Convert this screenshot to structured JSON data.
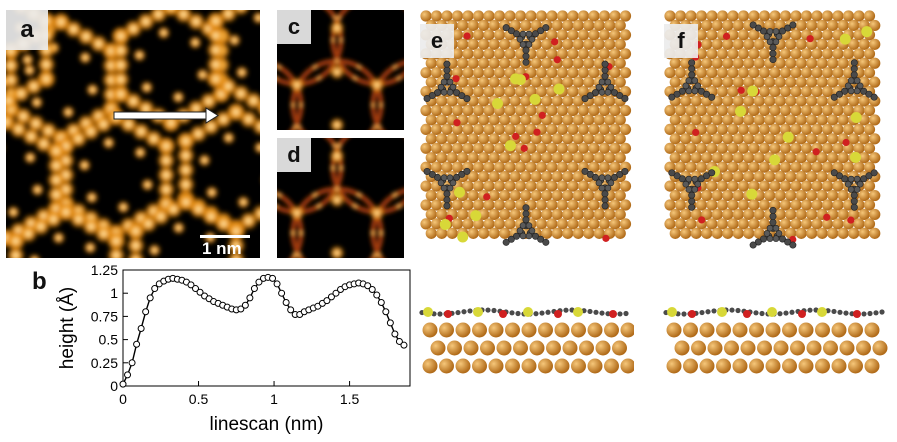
{
  "panels": {
    "a": {
      "label": "a",
      "scalebar": "1 nm"
    },
    "b": {
      "label": "b"
    },
    "c": {
      "label": "c"
    },
    "d": {
      "label": "d"
    },
    "e": {
      "label": "e"
    },
    "f": {
      "label": "f"
    }
  },
  "colors": {
    "stm_dark": "#000000",
    "stm_mid": "#c86a00",
    "stm_bright": "#fff2c8",
    "gold": "#d8922e",
    "carbon": "#4a4a4a",
    "oxygen": "#d02020",
    "sulfur": "#d8d838"
  },
  "chart_data": {
    "type": "line",
    "xlabel": "linescan (nm)",
    "ylabel": "height (Å)",
    "xlim": [
      0,
      1.9
    ],
    "ylim": [
      0,
      1.25
    ],
    "xticks": [
      "0",
      "0.5",
      "1",
      "1.5"
    ],
    "yticks": [
      "0",
      "0.25",
      "0.5",
      "0.75",
      "1",
      "1.25"
    ],
    "grid": false,
    "series": [
      {
        "x": [
          0,
          0.03,
          0.06,
          0.09,
          0.12,
          0.15,
          0.18,
          0.21,
          0.24,
          0.27,
          0.3,
          0.33,
          0.36,
          0.39,
          0.42,
          0.45,
          0.48,
          0.51,
          0.54,
          0.57,
          0.6,
          0.63,
          0.66,
          0.69,
          0.72,
          0.75,
          0.78,
          0.81,
          0.84,
          0.87,
          0.9,
          0.93,
          0.96,
          0.99,
          1.02,
          1.05,
          1.08,
          1.11,
          1.14,
          1.17,
          1.2,
          1.23,
          1.26,
          1.29,
          1.32,
          1.35,
          1.38,
          1.41,
          1.44,
          1.47,
          1.5,
          1.53,
          1.56,
          1.59,
          1.62,
          1.65,
          1.68,
          1.71,
          1.74,
          1.77,
          1.8,
          1.83,
          1.86
        ],
        "values": [
          0.02,
          0.12,
          0.25,
          0.45,
          0.62,
          0.8,
          0.95,
          1.05,
          1.1,
          1.13,
          1.15,
          1.16,
          1.15,
          1.14,
          1.12,
          1.09,
          1.05,
          1.01,
          0.97,
          0.94,
          0.91,
          0.89,
          0.87,
          0.85,
          0.83,
          0.82,
          0.83,
          0.87,
          0.95,
          1.05,
          1.12,
          1.16,
          1.17,
          1.16,
          1.1,
          1.0,
          0.9,
          0.82,
          0.77,
          0.77,
          0.8,
          0.82,
          0.84,
          0.86,
          0.89,
          0.92,
          0.96,
          1.0,
          1.04,
          1.07,
          1.09,
          1.1,
          1.11,
          1.1,
          1.08,
          1.04,
          0.98,
          0.9,
          0.8,
          0.68,
          0.56,
          0.48,
          0.44
        ]
      }
    ]
  }
}
